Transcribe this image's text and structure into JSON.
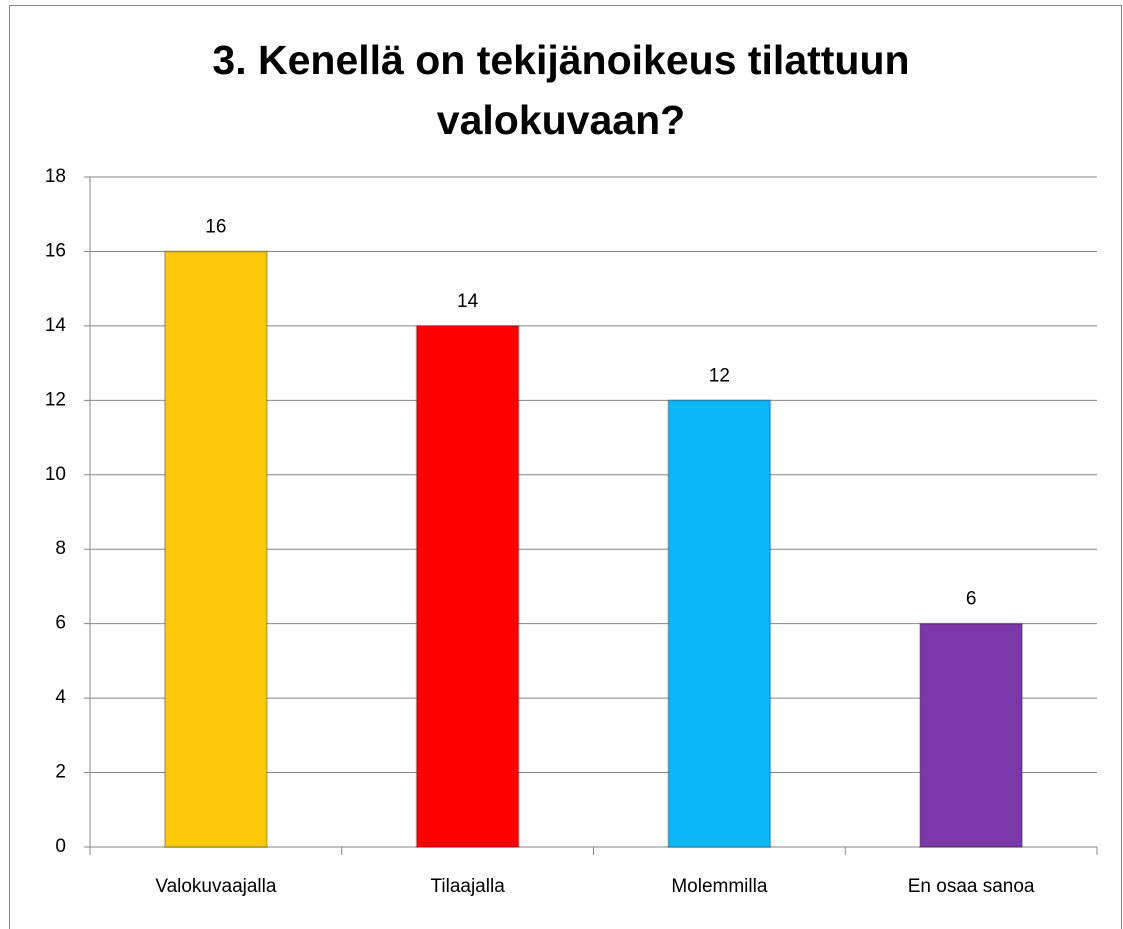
{
  "chart_data": {
    "type": "bar",
    "title": "3. Kenellä on tekijänoikeus tilattuun valokuvaan?",
    "categories": [
      "Valokuvaajalla",
      "Tilaajalla",
      "Molemmilla",
      "En osaa sanoa"
    ],
    "values": [
      16,
      14,
      12,
      6
    ],
    "colors": [
      "#fdc90a",
      "#ff0000",
      "#0cb9f8",
      "#7a38a8"
    ],
    "ylim": [
      0,
      18
    ],
    "yticks": [
      0,
      2,
      4,
      6,
      8,
      10,
      12,
      14,
      16,
      18
    ],
    "grid": true
  }
}
